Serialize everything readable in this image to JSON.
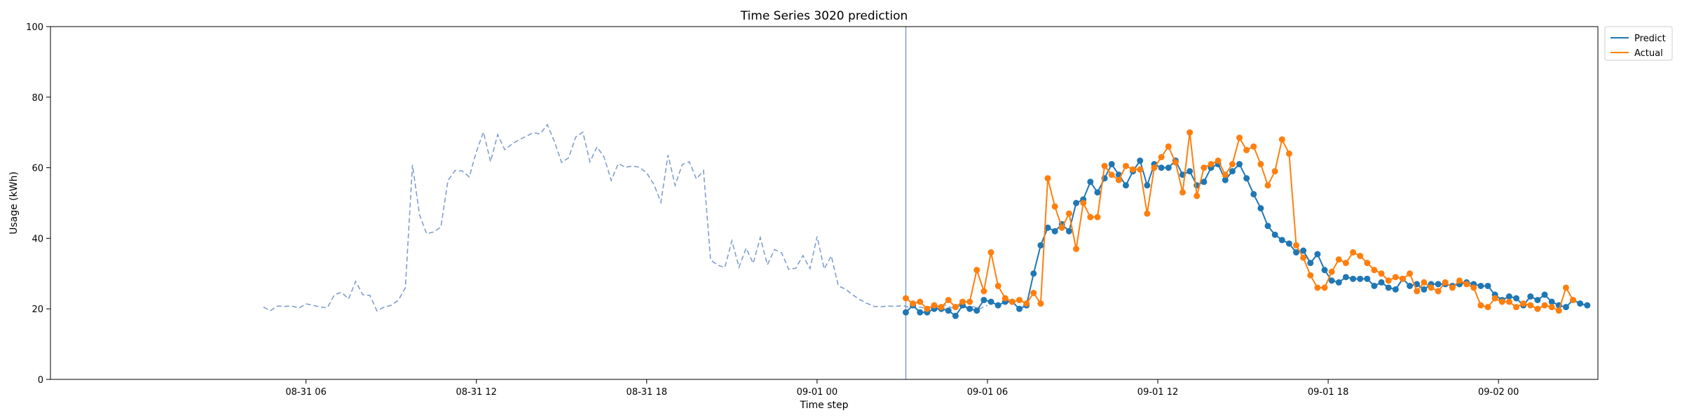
{
  "chart_data": {
    "type": "line",
    "title": "Time Series 3020 prediction",
    "xlabel": "Time step",
    "ylabel": "Usage (kWh)",
    "ylim": [
      0,
      100
    ],
    "yticks": [
      0,
      20,
      40,
      60,
      80,
      100
    ],
    "x_ticks": [
      {
        "label": "08-31 06",
        "x": 36
      },
      {
        "label": "08-31 12",
        "x": 60
      },
      {
        "label": "08-31 18",
        "x": 84
      },
      {
        "label": "09-01 00",
        "x": 108
      },
      {
        "label": "09-01 06",
        "x": 132
      },
      {
        "label": "09-01 12",
        "x": 156
      },
      {
        "label": "09-01 18",
        "x": 180
      },
      {
        "label": "09-02 00",
        "x": 204
      }
    ],
    "xlim": [
      0,
      218
    ],
    "legend_position": "upper right outside",
    "colors": {
      "history": "#7f9fcc",
      "predict": "#1f77b4",
      "actual": "#ff7f0e",
      "split_line": "#7f9fcc"
    },
    "split_x": 120.5,
    "history": {
      "x_start": 30,
      "values": [
        20.5,
        19.5,
        20.8,
        20.7,
        20.8,
        20.2,
        21.4,
        21.0,
        20.5,
        20.3,
        24.0,
        24.7,
        22.8,
        27.8,
        24.0,
        23.8,
        19.4,
        20.5,
        21.0,
        22.4,
        26.0,
        60.8,
        46.6,
        41.3,
        41.8,
        43.2,
        56.4,
        59.2,
        59.1,
        57.4,
        64.5,
        70.1,
        61.7,
        69.4,
        65.1,
        66.7,
        67.9,
        68.9,
        69.9,
        69.6,
        72.2,
        67.4,
        61.5,
        62.8,
        68.7,
        70.1,
        61.7,
        65.9,
        63.0,
        56.4,
        61.2,
        60.1,
        60.5,
        60.1,
        58.5,
        55.3,
        50.2,
        63.6,
        55.0,
        60.9,
        61.7,
        56.8,
        59.2,
        33.8,
        32.4,
        31.7,
        39.3,
        31.8,
        37.2,
        32.9,
        40.2,
        32.5,
        36.8,
        35.9,
        31.2,
        31.5,
        35.1,
        31.4,
        40.5,
        31.3,
        35.0,
        26.5,
        25.6,
        24.0,
        22.6,
        21.6,
        20.7,
        20.6,
        20.8,
        20.7,
        20.9,
        20.5,
        20.7,
        20.3,
        20.6,
        20.5,
        21.1,
        20.3,
        20.8,
        20.3,
        20.6,
        20.1,
        21.0
      ]
    },
    "forecast_x_start": 120.5,
    "series": [
      {
        "name": "Predict",
        "values": [
          19,
          21,
          19,
          19,
          20,
          20,
          19.5,
          18,
          21,
          20,
          19.5,
          22.5,
          22,
          21,
          22,
          22,
          20,
          21,
          30,
          38,
          43,
          42,
          44,
          42,
          50,
          51,
          56,
          53,
          57,
          61,
          58,
          55,
          59,
          62,
          55,
          61,
          60,
          60,
          62,
          58,
          59,
          55,
          56,
          60,
          61,
          56.5,
          59,
          61,
          57,
          52.5,
          48.5,
          43.5,
          41,
          39.5,
          38.5,
          36,
          36.5,
          33,
          35.5,
          31,
          28,
          27.5,
          29,
          28.5,
          28.5,
          28.5,
          26.5,
          27.5,
          26,
          25.5,
          28.5,
          26.5,
          27,
          25.5,
          27,
          27,
          27,
          26.5,
          27,
          27.5,
          27,
          26.5,
          26.5,
          24,
          22.5,
          23.5,
          23,
          21,
          23.5,
          22.5,
          24,
          22,
          21,
          20.5,
          22.5,
          21.5,
          21
        ]
      },
      {
        "name": "Actual",
        "values": [
          23,
          21.5,
          22,
          20,
          21,
          20.5,
          22.5,
          20.5,
          22,
          22,
          31,
          25,
          36,
          26.5,
          23,
          22,
          22.5,
          21.5,
          24.5,
          21.5,
          57,
          49,
          43,
          47,
          37,
          50,
          46,
          46,
          60.5,
          58,
          56.5,
          60.5,
          59.5,
          59.5,
          47,
          60,
          63,
          66,
          61.5,
          53,
          70,
          52,
          60,
          61,
          62,
          58,
          61,
          68.5,
          65,
          66,
          61,
          55,
          59,
          68,
          64,
          38,
          34.5,
          29.5,
          26,
          26,
          30.5,
          34,
          33,
          36,
          35,
          33,
          31,
          30,
          28,
          29,
          28.5,
          30,
          25,
          27.5,
          26,
          25,
          27.5,
          26,
          28,
          27,
          26,
          21,
          20.5,
          23,
          22,
          22,
          20.5,
          21.5,
          21,
          20,
          21,
          20.5,
          19.5,
          26,
          22.5
        ]
      }
    ]
  }
}
